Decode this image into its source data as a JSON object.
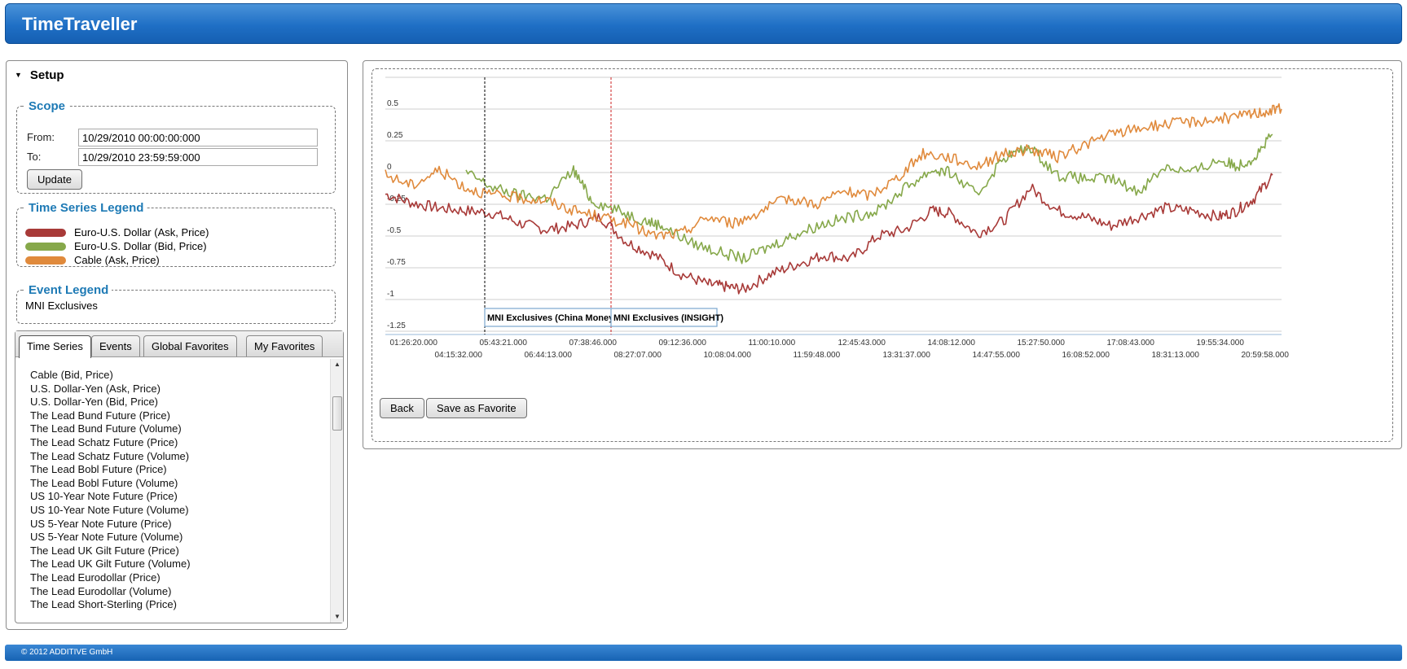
{
  "app": {
    "title": "TimeTraveller",
    "copyright": "© 2012 ADDITIVE GmbH"
  },
  "setup": {
    "heading": "Setup",
    "scope": {
      "legend": "Scope",
      "from_label": "From:",
      "from_value": "10/29/2010 00:00:00:000",
      "to_label": "To:",
      "to_value": "10/29/2010 23:59:59:000",
      "update_label": "Update"
    },
    "time_series_legend": {
      "legend": "Time Series Legend",
      "items": [
        {
          "label": "Euro-U.S. Dollar (Ask, Price)",
          "color": "#a83a38"
        },
        {
          "label": "Euro-U.S. Dollar (Bid, Price)",
          "color": "#86a84a"
        },
        {
          "label": "Cable (Ask, Price)",
          "color": "#e08a3c"
        }
      ]
    },
    "event_legend": {
      "legend": "Event Legend",
      "text": "MNI Exclusives"
    }
  },
  "tabs": [
    {
      "label": "Time Series",
      "active": true
    },
    {
      "label": "Events",
      "active": false
    },
    {
      "label": "Global Favorites",
      "active": false
    },
    {
      "label": "My Favorites",
      "active": false
    }
  ],
  "series_list": [
    "Cable (Bid, Price)",
    "U.S. Dollar-Yen (Ask, Price)",
    "U.S. Dollar-Yen (Bid, Price)",
    "The Lead Bund Future (Price)",
    "The Lead Bund Future (Volume)",
    "The Lead Schatz Future (Price)",
    "The Lead Schatz Future (Volume)",
    "The Lead Bobl Future (Price)",
    "The Lead Bobl Future (Volume)",
    "US 10-Year Note Future (Price)",
    "US 10-Year Note Future (Volume)",
    "US 5-Year Note Future (Price)",
    "US 5-Year Note Future (Volume)",
    "The Lead UK Gilt Future (Price)",
    "The Lead UK Gilt Future (Volume)",
    "The Lead Eurodollar (Price)",
    "The Lead Eurodollar (Volume)",
    "The Lead Short-Sterling (Price)"
  ],
  "chart_buttons": {
    "back": "Back",
    "save_favorite": "Save as Favorite"
  },
  "chart_data": {
    "type": "line",
    "ylim": [
      -1.25,
      0.75
    ],
    "y_ticks": [
      "0.5",
      "0.25",
      "0",
      "-0.25",
      "-0.5",
      "-0.75",
      "-1",
      "-1.25"
    ],
    "x_tick_labels_upper": [
      "01:26:20.000",
      "05:43:21.000",
      "07:38:46.000",
      "09:12:36.000",
      "11:00:10.000",
      "12:45:43.000",
      "14:08:12.000",
      "15:27:50.000",
      "17:08:43.000",
      "19:55:34.000"
    ],
    "x_tick_labels_lower": [
      "04:15:32.000",
      "06:44:13.000",
      "08:27:07.000",
      "10:08:04.000",
      "11:59:48.000",
      "13:31:37.000",
      "14:47:55.000",
      "16:08:52.000",
      "18:31:13.000",
      "20:59:58.000"
    ],
    "grid": true,
    "series": [
      {
        "name": "Euro-U.S. Dollar (Ask, Price)",
        "color": "#a83a38",
        "points": [
          [
            0.0,
            -0.17
          ],
          [
            0.03,
            -0.24
          ],
          [
            0.06,
            -0.28
          ],
          [
            0.09,
            -0.3
          ],
          [
            0.12,
            -0.32
          ],
          [
            0.15,
            -0.4
          ],
          [
            0.18,
            -0.45
          ],
          [
            0.21,
            -0.42
          ],
          [
            0.24,
            -0.35
          ],
          [
            0.27,
            -0.55
          ],
          [
            0.3,
            -0.65
          ],
          [
            0.33,
            -0.8
          ],
          [
            0.36,
            -0.88
          ],
          [
            0.38,
            -0.9
          ],
          [
            0.4,
            -0.92
          ],
          [
            0.43,
            -0.8
          ],
          [
            0.46,
            -0.72
          ],
          [
            0.49,
            -0.65
          ],
          [
            0.52,
            -0.68
          ],
          [
            0.55,
            -0.5
          ],
          [
            0.58,
            -0.45
          ],
          [
            0.61,
            -0.3
          ],
          [
            0.63,
            -0.32
          ],
          [
            0.66,
            -0.48
          ],
          [
            0.69,
            -0.38
          ],
          [
            0.72,
            -0.12
          ],
          [
            0.75,
            -0.3
          ],
          [
            0.78,
            -0.35
          ],
          [
            0.81,
            -0.42
          ],
          [
            0.84,
            -0.35
          ],
          [
            0.87,
            -0.28
          ],
          [
            0.9,
            -0.3
          ],
          [
            0.93,
            -0.35
          ],
          [
            0.95,
            -0.3
          ],
          [
            0.97,
            -0.2
          ],
          [
            0.99,
            -0.02
          ]
        ]
      },
      {
        "name": "Euro-U.S. Dollar (Bid, Price)",
        "color": "#86a84a",
        "points": [
          [
            0.09,
            0.0
          ],
          [
            0.12,
            -0.12
          ],
          [
            0.15,
            -0.18
          ],
          [
            0.18,
            -0.2
          ],
          [
            0.21,
            0.02
          ],
          [
            0.23,
            -0.22
          ],
          [
            0.26,
            -0.3
          ],
          [
            0.29,
            -0.38
          ],
          [
            0.31,
            -0.42
          ],
          [
            0.34,
            -0.55
          ],
          [
            0.37,
            -0.62
          ],
          [
            0.4,
            -0.68
          ],
          [
            0.43,
            -0.58
          ],
          [
            0.46,
            -0.48
          ],
          [
            0.49,
            -0.4
          ],
          [
            0.52,
            -0.35
          ],
          [
            0.55,
            -0.3
          ],
          [
            0.58,
            -0.12
          ],
          [
            0.61,
            0.02
          ],
          [
            0.63,
            0.0
          ],
          [
            0.66,
            -0.18
          ],
          [
            0.69,
            0.12
          ],
          [
            0.72,
            0.2
          ],
          [
            0.75,
            -0.02
          ],
          [
            0.78,
            -0.05
          ],
          [
            0.81,
            -0.05
          ],
          [
            0.84,
            -0.15
          ],
          [
            0.87,
            0.05
          ],
          [
            0.9,
            0.0
          ],
          [
            0.93,
            0.1
          ],
          [
            0.95,
            0.05
          ],
          [
            0.97,
            0.12
          ],
          [
            0.99,
            0.3
          ]
        ]
      },
      {
        "name": "Cable (Ask, Price)",
        "color": "#e08a3c",
        "points": [
          [
            0.0,
            -0.02
          ],
          [
            0.03,
            -0.1
          ],
          [
            0.06,
            0.02
          ],
          [
            0.09,
            -0.12
          ],
          [
            0.12,
            -0.18
          ],
          [
            0.15,
            -0.2
          ],
          [
            0.18,
            -0.22
          ],
          [
            0.21,
            -0.3
          ],
          [
            0.24,
            -0.35
          ],
          [
            0.27,
            -0.4
          ],
          [
            0.3,
            -0.5
          ],
          [
            0.33,
            -0.48
          ],
          [
            0.36,
            -0.35
          ],
          [
            0.39,
            -0.4
          ],
          [
            0.42,
            -0.3
          ],
          [
            0.45,
            -0.2
          ],
          [
            0.48,
            -0.25
          ],
          [
            0.51,
            -0.15
          ],
          [
            0.54,
            -0.18
          ],
          [
            0.57,
            -0.05
          ],
          [
            0.6,
            0.15
          ],
          [
            0.63,
            0.12
          ],
          [
            0.66,
            0.05
          ],
          [
            0.69,
            0.15
          ],
          [
            0.72,
            0.18
          ],
          [
            0.75,
            0.12
          ],
          [
            0.78,
            0.22
          ],
          [
            0.81,
            0.3
          ],
          [
            0.84,
            0.35
          ],
          [
            0.87,
            0.38
          ],
          [
            0.9,
            0.4
          ],
          [
            0.93,
            0.42
          ],
          [
            0.96,
            0.45
          ],
          [
            0.98,
            0.48
          ],
          [
            1.0,
            0.5
          ]
        ]
      }
    ],
    "events": [
      {
        "label": "MNI Exclusives (China Money W",
        "line_color": "#000000"
      },
      {
        "label": "MNI Exclusives (INSIGHT)",
        "line_color": "#cc2222"
      }
    ]
  }
}
